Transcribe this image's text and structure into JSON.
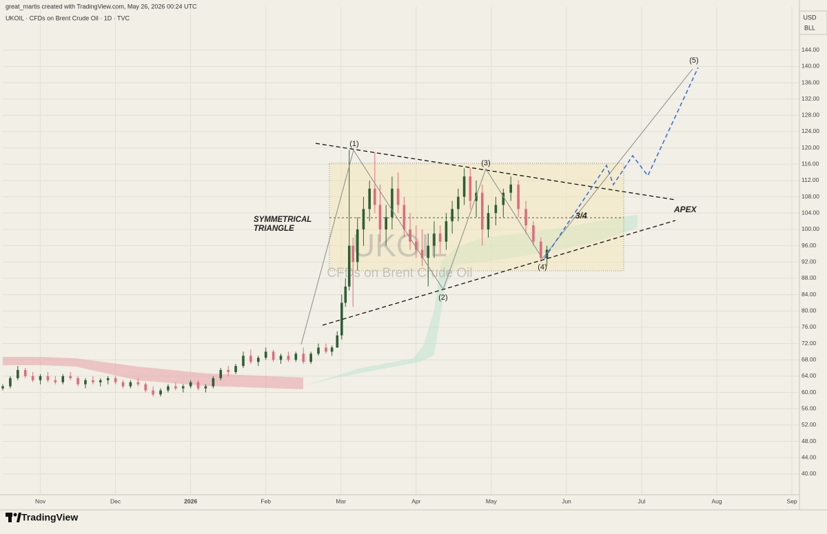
{
  "header": {
    "credit": "great_martis created with TradingView.com, May 26, 2026 00:24 UTC",
    "symbol": "UKOIL · CFDs on Brent Crude Oil · 1D · TVC",
    "currency": "USD",
    "unit": "BLL",
    "brand": "TradingView"
  },
  "chart_data": {
    "type": "candlestick",
    "watermark": "UKOIL",
    "watermark_sub": "CFDs on Brent Crude Oil",
    "annotations": [
      "(1)",
      "(2)",
      "(3)",
      "(4)",
      "(5)",
      "SYMMETRICAL",
      "TRIANGLE",
      "3/4",
      "APEX"
    ],
    "up_color": "#2f5e34",
    "down_color": "#e06b7c",
    "grid": true,
    "x": [
      -0.5,
      -0.4,
      -0.3,
      -0.2,
      -0.1,
      0.0,
      0.1,
      0.2,
      0.3,
      0.4,
      0.5,
      0.6,
      0.7,
      0.8,
      0.9,
      1.0,
      1.1,
      1.2,
      1.3,
      1.4,
      1.5,
      1.6,
      1.7,
      1.8,
      1.9,
      2.0,
      2.1,
      2.2,
      2.3,
      2.4,
      2.5,
      2.6,
      2.7,
      2.8,
      2.9,
      3.0,
      3.1,
      3.2,
      3.3,
      3.4,
      3.5,
      3.6,
      3.7,
      3.8,
      3.88,
      3.95,
      4.01,
      4.06,
      4.11,
      4.16,
      4.22,
      4.3,
      4.38,
      4.45,
      4.52,
      4.6,
      4.68,
      4.76,
      4.84,
      4.92,
      5.0,
      5.08,
      5.16,
      5.24,
      5.32,
      5.4,
      5.48,
      5.56,
      5.64,
      5.72,
      5.8,
      5.88,
      5.96,
      6.06,
      6.16,
      6.26,
      6.36,
      6.46,
      6.56,
      6.66,
      6.74
    ],
    "open": [
      61,
      61.5,
      63.5,
      65.5,
      64,
      63,
      64,
      63,
      62.5,
      64,
      63.5,
      62,
      63,
      62.5,
      63,
      63.5,
      62.5,
      61.5,
      62.5,
      62,
      60.5,
      59.5,
      60.5,
      61.5,
      61,
      61.5,
      62.5,
      61,
      61.5,
      63.5,
      65.5,
      65,
      66.5,
      69,
      67.5,
      68.5,
      70,
      68,
      69,
      68,
      69.5,
      67.5,
      69.5,
      71,
      70,
      71,
      74,
      82,
      86,
      96,
      92,
      100,
      105,
      110,
      106,
      100,
      103,
      110,
      106,
      100,
      97,
      95,
      93,
      96,
      99,
      97,
      102,
      105,
      108,
      113,
      107,
      109,
      100,
      104,
      106,
      109,
      111,
      105,
      101,
      97,
      93
    ],
    "high": [
      62,
      64,
      66.5,
      66,
      65,
      64.5,
      65,
      64,
      64.5,
      65,
      64,
      63.5,
      64,
      63.5,
      64,
      64,
      63,
      63,
      63.5,
      62.5,
      61.5,
      61,
      62,
      62.5,
      62,
      63,
      63,
      62,
      64,
      66,
      66.5,
      67,
      70,
      70.5,
      69,
      71,
      70.5,
      69.5,
      70,
      70,
      71,
      70,
      72,
      72,
      71.5,
      75,
      84,
      88,
      119.5,
      98,
      103,
      108,
      112,
      119,
      111,
      106,
      113,
      114,
      108,
      104,
      101,
      100,
      99,
      102,
      101,
      104,
      107,
      110,
      115,
      115,
      112,
      111,
      106,
      108,
      110,
      113,
      112,
      107,
      102,
      98,
      96
    ],
    "low": [
      60.5,
      61,
      63,
      63.5,
      62.5,
      62,
      62.5,
      62,
      62,
      63,
      61.5,
      61,
      62,
      61.5,
      62,
      62,
      61,
      61,
      61.5,
      60,
      59,
      59,
      60,
      60.5,
      60,
      61,
      60.5,
      60,
      61,
      63,
      64,
      64.5,
      66,
      67,
      66.5,
      68,
      67.5,
      67,
      67.5,
      67.5,
      67,
      67,
      69,
      69.5,
      69,
      71,
      73,
      81,
      85,
      81,
      90,
      96,
      102,
      104,
      97,
      96,
      100,
      104,
      98,
      95,
      93,
      91,
      86,
      93,
      94,
      95,
      99,
      102,
      106,
      105,
      103,
      96,
      98,
      101,
      103,
      107,
      103,
      99,
      96,
      92,
      91
    ],
    "close": [
      61.5,
      63.5,
      65.5,
      64,
      63,
      64,
      63,
      62.5,
      64,
      63.5,
      62,
      63,
      62.5,
      63,
      63.5,
      62.5,
      61.5,
      62.5,
      62,
      60.5,
      59.5,
      60.5,
      61.5,
      61,
      61.5,
      62.5,
      61,
      61.5,
      63.5,
      65.5,
      65,
      66.5,
      69,
      67.5,
      68.5,
      70,
      68,
      69,
      68,
      69.5,
      67.5,
      69.5,
      71,
      70,
      71,
      74,
      82,
      86,
      96,
      92,
      100,
      105,
      110,
      106,
      100,
      103,
      110,
      106,
      100,
      97,
      95,
      93,
      96,
      99,
      97,
      102,
      105,
      108,
      113,
      107,
      109,
      100,
      104,
      106,
      109,
      111,
      105,
      101,
      97,
      93,
      95
    ],
    "xlim": [
      -0.5,
      10.1
    ],
    "xticks": [
      {
        "value": 0,
        "label": "Nov"
      },
      {
        "value": 1,
        "label": "Dec"
      },
      {
        "value": 2,
        "label": "2026"
      },
      {
        "value": 3,
        "label": "Feb"
      },
      {
        "value": 4,
        "label": "Mar"
      },
      {
        "value": 5,
        "label": "Apr"
      },
      {
        "value": 6,
        "label": "May"
      },
      {
        "value": 7,
        "label": "Jun"
      },
      {
        "value": 8,
        "label": "Jul"
      },
      {
        "value": 9,
        "label": "Aug"
      },
      {
        "value": 10,
        "label": "Sep"
      }
    ],
    "ylim": [
      34.9,
      154.6
    ],
    "yticks": [
      {
        "value": 40,
        "label": "40.00"
      },
      {
        "value": 44,
        "label": "44.00"
      },
      {
        "value": 48,
        "label": "48.00"
      },
      {
        "value": 52,
        "label": "52.00"
      },
      {
        "value": 56,
        "label": "56.00"
      },
      {
        "value": 60,
        "label": "60.00"
      },
      {
        "value": 64,
        "label": "64.00"
      },
      {
        "value": 68,
        "label": "68.00"
      },
      {
        "value": 72,
        "label": "72.00"
      },
      {
        "value": 76,
        "label": "76.00"
      },
      {
        "value": 80,
        "label": "80.00"
      },
      {
        "value": 84,
        "label": "84.00"
      },
      {
        "value": 88,
        "label": "88.00"
      },
      {
        "value": 92,
        "label": "92.00"
      },
      {
        "value": 96,
        "label": "96.00"
      },
      {
        "value": 100,
        "label": "100.00"
      },
      {
        "value": 104,
        "label": "104.00"
      },
      {
        "value": 108,
        "label": "108.00"
      },
      {
        "value": 112,
        "label": "112.00"
      },
      {
        "value": 116,
        "label": "116.00"
      },
      {
        "value": 120,
        "label": "120.00"
      },
      {
        "value": 124,
        "label": "124.00"
      },
      {
        "value": 128,
        "label": "128.00"
      },
      {
        "value": 132,
        "label": "132.00"
      },
      {
        "value": 136,
        "label": "136.00"
      },
      {
        "value": 140,
        "label": "140.00"
      },
      {
        "value": 144,
        "label": "144.00"
      }
    ]
  }
}
